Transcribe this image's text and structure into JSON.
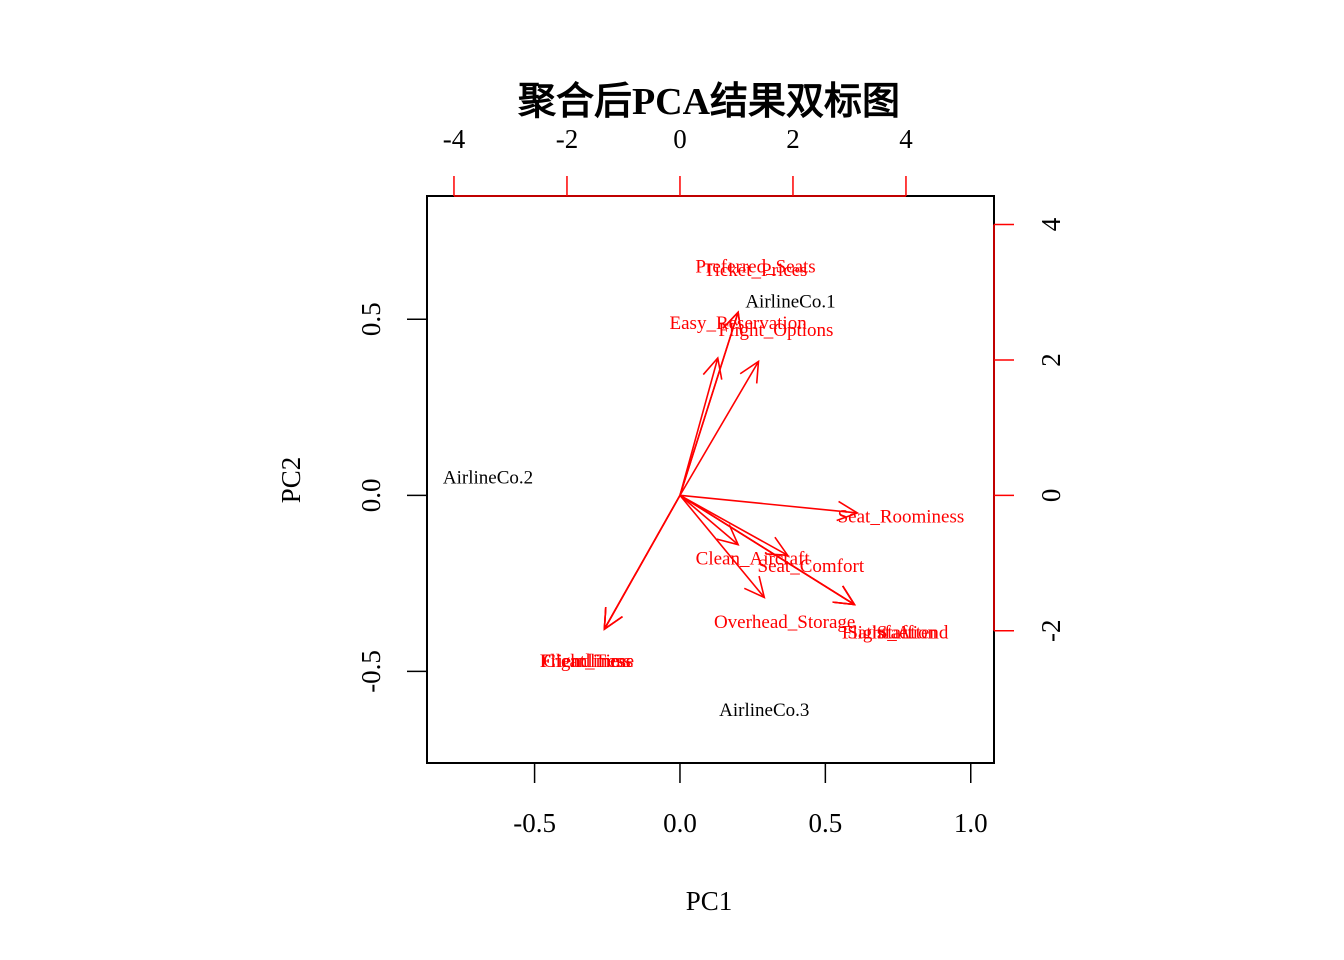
{
  "chart_data": {
    "type": "scatter",
    "subtype": "biplot",
    "title": "聚合后PCA结果双标图",
    "xlabel": "PC1",
    "ylabel": "PC2",
    "xlim": [
      -0.87,
      1.08
    ],
    "ylim": [
      -0.76,
      0.85
    ],
    "x_ticks": [
      "-0.5",
      "0.0",
      "0.5",
      "1.0"
    ],
    "y_ticks": [
      "-0.5",
      "0.0",
      "0.5"
    ],
    "top_ticks": [
      "-4",
      "-2",
      "0",
      "2",
      "4"
    ],
    "right_ticks": [
      "-2",
      "0",
      "2",
      "4"
    ],
    "top_axis_color": "#ff0000",
    "right_axis_color": "#ff0000",
    "observations": [
      {
        "label": "AirlineCo.1",
        "x": 0.38,
        "y": 0.55
      },
      {
        "label": "AirlineCo.2",
        "x": -0.66,
        "y": 0.05
      },
      {
        "label": "AirlineCo.3",
        "x": 0.29,
        "y": -0.61
      }
    ],
    "variable_color": "#ff0000",
    "variables": [
      {
        "label": "Preferred_Seats",
        "x": 0.2,
        "y": 0.52,
        "lx": 0.26,
        "ly": 0.65
      },
      {
        "label": "Ticket_Prices",
        "x": 0.2,
        "y": 0.52,
        "lx": 0.26,
        "ly": 0.64
      },
      {
        "label": "Easy_Reservation",
        "x": 0.13,
        "y": 0.39,
        "lx": 0.2,
        "ly": 0.49
      },
      {
        "label": "Flight_Options",
        "x": 0.27,
        "y": 0.38,
        "lx": 0.33,
        "ly": 0.47
      },
      {
        "label": "Seat_Roominess",
        "x": 0.61,
        "y": -0.05,
        "lx": 0.76,
        "ly": -0.06
      },
      {
        "label": "Clean_Aircraft",
        "x": 0.2,
        "y": -0.14,
        "lx": 0.25,
        "ly": -0.18
      },
      {
        "label": "Seat_Comfort",
        "x": 0.37,
        "y": -0.17,
        "lx": 0.45,
        "ly": -0.2
      },
      {
        "label": "Overhead_Storage",
        "x": 0.29,
        "y": -0.29,
        "lx": 0.36,
        "ly": -0.36
      },
      {
        "label": "Flight_Attend",
        "x": 0.6,
        "y": -0.31,
        "lx": 0.74,
        "ly": -0.39
      },
      {
        "label": "Staff",
        "x": 0.6,
        "y": -0.31,
        "lx": 0.74,
        "ly": -0.39
      },
      {
        "label": "Satisfaction",
        "x": 0.6,
        "y": -0.31,
        "lx": 0.73,
        "ly": -0.39
      },
      {
        "label": "Flight_Time",
        "x": -0.26,
        "y": -0.38,
        "lx": -0.32,
        "ly": -0.47
      },
      {
        "label": "Friendliness",
        "x": -0.26,
        "y": -0.38,
        "lx": -0.32,
        "ly": -0.47
      },
      {
        "label": "Cleanliness",
        "x": -0.26,
        "y": -0.38,
        "lx": -0.32,
        "ly": -0.47
      }
    ]
  }
}
